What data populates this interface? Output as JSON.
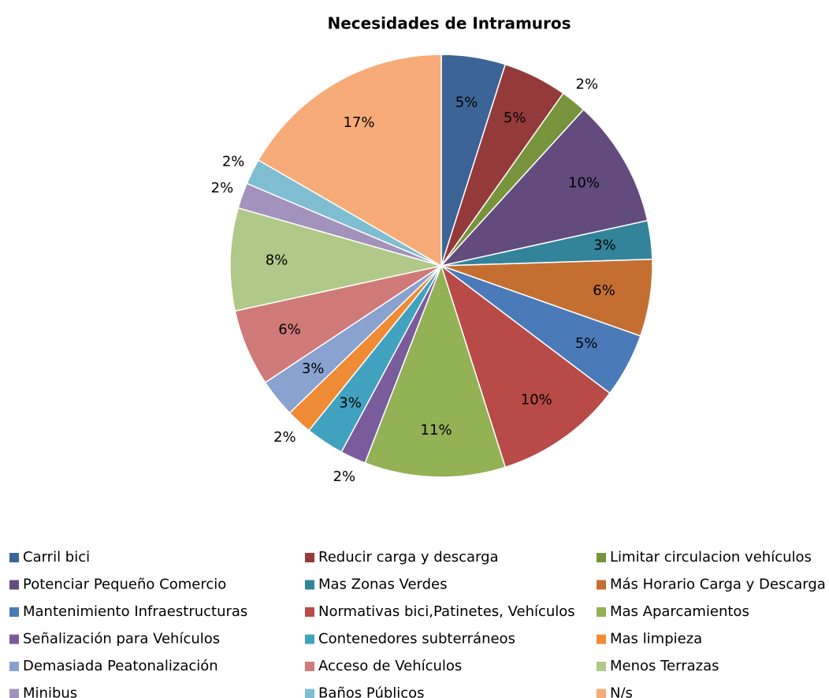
{
  "chart_data": {
    "type": "pie",
    "title": "Necesidades de Intramuros",
    "categories": [
      "Carril bici",
      "Reducir carga y descarga",
      "Limitar circulacion vehículos",
      "Potenciar Pequeño Comercio",
      "Mas Zonas Verdes",
      "Más Horario Carga y Descarga",
      "Mantenimiento Infraestructuras",
      "Normativas bici,Patinetes, Vehículos",
      "Mas Aparcamientos",
      "Señalización para Vehículos",
      "Contenedores subterráneos",
      "Mas limpieza",
      "Demasiada Peatonalización",
      "Acceso de Vehículos",
      "Menos Terrazas",
      "Minibus",
      "Baños Públicos",
      "N/s"
    ],
    "values": [
      5,
      5,
      2,
      10,
      3,
      6,
      5,
      10,
      11,
      2,
      3,
      2,
      3,
      6,
      8,
      2,
      2,
      17
    ],
    "value_labels": [
      "5%",
      "5%",
      "2%",
      "10%",
      "3%",
      "6%",
      "5%",
      "10%",
      "11%",
      "2%",
      "3%",
      "2%",
      "3%",
      "6%",
      "8%",
      "2%",
      "2%",
      "17%"
    ],
    "colors": [
      "#3d6496",
      "#943a3a",
      "#77933c",
      "#634b7d",
      "#33849a",
      "#c46f31",
      "#4a7ab8",
      "#b84a47",
      "#93b155",
      "#7a5b9c",
      "#41a2bf",
      "#ef8b35",
      "#89a2cf",
      "#cf7a78",
      "#b0c888",
      "#a392bb",
      "#7fbdd0",
      "#f7ab78"
    ],
    "legend": "bottom"
  }
}
